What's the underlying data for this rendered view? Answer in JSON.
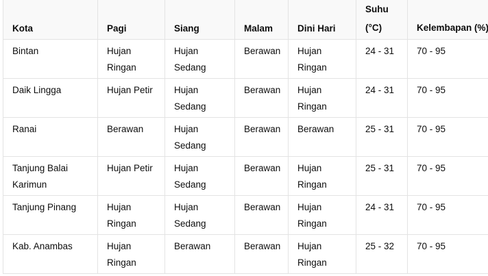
{
  "table": {
    "headers": [
      "Kota",
      "Pagi",
      "Siang",
      "Malam",
      "Dini Hari",
      "Suhu (°C)",
      "Kelembapan (%)"
    ],
    "rows": [
      [
        "Bintan",
        "Hujan Ringan",
        "Hujan Sedang",
        "Berawan",
        "Hujan Ringan",
        "24 - 31",
        "70 - 95"
      ],
      [
        "Daik Lingga",
        "Hujan Petir",
        "Hujan Sedang",
        "Berawan",
        "Hujan Ringan",
        "24 - 31",
        "70 - 95"
      ],
      [
        "Ranai",
        "Berawan",
        "Hujan Sedang",
        "Berawan",
        "Berawan",
        "25 - 31",
        "70 - 95"
      ],
      [
        "Tanjung Balai Karimun",
        "Hujan Petir",
        "Hujan Sedang",
        "Berawan",
        "Hujan Ringan",
        "25 - 31",
        "70 - 95"
      ],
      [
        "Tanjung Pinang",
        "Hujan Ringan",
        "Hujan Sedang",
        "Berawan",
        "Hujan Ringan",
        "24 - 31",
        "70 - 95"
      ],
      [
        "Kab. Anambas",
        "Hujan Ringan",
        "Berawan",
        "Berawan",
        "Hujan Ringan",
        "25 - 32",
        "70 - 95"
      ]
    ]
  }
}
